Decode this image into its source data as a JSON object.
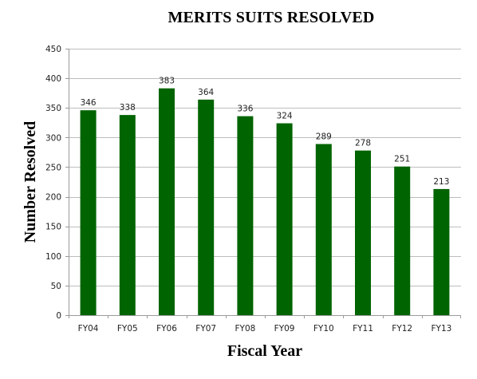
{
  "chart_data": {
    "type": "bar",
    "title": "MERITS SUITS RESOLVED",
    "xlabel": "Fiscal Year",
    "ylabel": "Number Resolved",
    "categories": [
      "FY04",
      "FY05",
      "FY06",
      "FY07",
      "FY08",
      "FY09",
      "FY10",
      "FY11",
      "FY12",
      "FY13"
    ],
    "values": [
      346,
      338,
      383,
      364,
      336,
      324,
      289,
      278,
      251,
      213
    ],
    "value_labels": [
      "346",
      "338",
      "383",
      "364",
      "336",
      "324",
      "289",
      "278",
      "251",
      "213"
    ],
    "ylim": [
      0,
      450
    ],
    "y_ticks": [
      0,
      50,
      100,
      150,
      200,
      250,
      300,
      350,
      400,
      450
    ],
    "y_tick_labels": [
      "0",
      "50",
      "100",
      "150",
      "200",
      "250",
      "300",
      "350",
      "400",
      "450"
    ],
    "grid": true,
    "legend": "none",
    "bar_color": "#006400",
    "grid_color": "#bdbdbd"
  }
}
